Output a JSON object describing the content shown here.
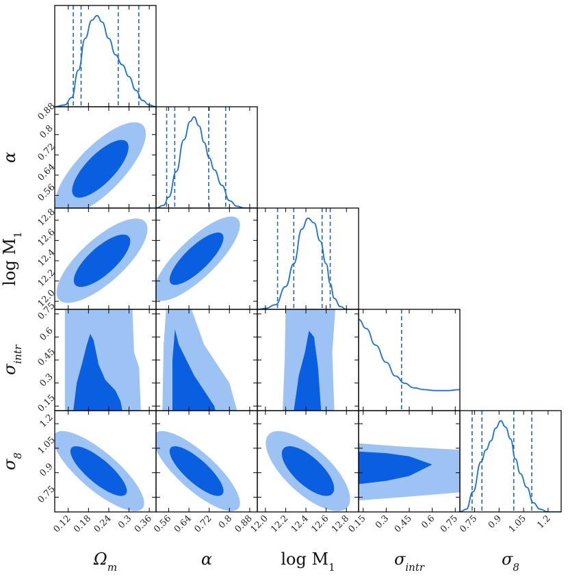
{
  "chart_data": {
    "type": "corner",
    "colors": {
      "line": "#1a6fd6",
      "fill_inner": "#0a5fe0",
      "fill_outer": "#9cc3f3",
      "dashed": "#2166b0"
    },
    "parameters": [
      {
        "key": "omega_m",
        "label": "Ωm",
        "ticks": [
          0.12,
          0.18,
          0.24,
          0.3,
          0.36
        ],
        "tick_labels": [
          "0.12",
          "0.18",
          "0.24",
          "0.3",
          "0.36"
        ],
        "range": [
          0.08,
          0.38
        ]
      },
      {
        "key": "alpha",
        "label": "α",
        "ticks": [
          0.56,
          0.64,
          0.72,
          0.8,
          0.88
        ],
        "tick_labels": [
          "0.56",
          "0.64",
          "0.72",
          "0.8",
          "0.88"
        ],
        "range": [
          0.51,
          0.91
        ]
      },
      {
        "key": "logM1",
        "label": "log M1",
        "ticks": [
          12.0,
          12.2,
          12.4,
          12.6,
          12.8
        ],
        "tick_labels": [
          "12.0",
          "12.2",
          "12.4",
          "12.6",
          "12.8"
        ],
        "range": [
          11.92,
          12.92
        ]
      },
      {
        "key": "sigma_intr",
        "label": "σintr",
        "ticks": [
          0.15,
          0.3,
          0.45,
          0.6,
          0.75
        ],
        "tick_labels": [
          "0.15",
          "0.3",
          "0.45",
          "0.6",
          "0.75"
        ],
        "range": [
          0.12,
          0.78
        ]
      },
      {
        "key": "sigma8",
        "label": "σ8",
        "ticks": [
          0.75,
          0.9,
          1.05,
          1.2
        ],
        "tick_labels": [
          "0.75",
          "0.9",
          "1.05",
          "1.2"
        ],
        "range": [
          0.66,
          1.28
        ]
      }
    ],
    "marginals": [
      {
        "param": "omega_m",
        "quantiles": [
          0.135,
          0.158,
          0.268,
          0.329
        ],
        "curve": [
          [
            0.08,
            0
          ],
          [
            0.11,
            0.02
          ],
          [
            0.13,
            0.1
          ],
          [
            0.15,
            0.4
          ],
          [
            0.17,
            0.75
          ],
          [
            0.19,
            0.95
          ],
          [
            0.205,
            1.0
          ],
          [
            0.22,
            0.93
          ],
          [
            0.24,
            0.75
          ],
          [
            0.26,
            0.57
          ],
          [
            0.28,
            0.46
          ],
          [
            0.3,
            0.33
          ],
          [
            0.32,
            0.18
          ],
          [
            0.34,
            0.07
          ],
          [
            0.36,
            0.02
          ],
          [
            0.38,
            0
          ]
        ]
      },
      {
        "param": "alpha",
        "quantiles": [
          0.552,
          0.584,
          0.718,
          0.785
        ],
        "curve": [
          [
            0.51,
            0
          ],
          [
            0.54,
            0.03
          ],
          [
            0.56,
            0.12
          ],
          [
            0.59,
            0.4
          ],
          [
            0.62,
            0.75
          ],
          [
            0.645,
            0.95
          ],
          [
            0.66,
            1.0
          ],
          [
            0.68,
            0.9
          ],
          [
            0.7,
            0.72
          ],
          [
            0.72,
            0.55
          ],
          [
            0.74,
            0.42
          ],
          [
            0.77,
            0.25
          ],
          [
            0.8,
            0.08
          ],
          [
            0.83,
            0.02
          ],
          [
            0.86,
            0.0
          ],
          [
            0.91,
            0
          ]
        ]
      },
      {
        "param": "logM1",
        "quantiles": [
          12.12,
          12.28,
          12.56,
          12.64
        ],
        "curve": [
          [
            11.92,
            0
          ],
          [
            12.0,
            0.01
          ],
          [
            12.1,
            0.05
          ],
          [
            12.2,
            0.25
          ],
          [
            12.28,
            0.5
          ],
          [
            12.36,
            0.88
          ],
          [
            12.42,
            1.0
          ],
          [
            12.48,
            0.95
          ],
          [
            12.54,
            0.75
          ],
          [
            12.6,
            0.5
          ],
          [
            12.64,
            0.28
          ],
          [
            12.68,
            0.12
          ],
          [
            12.74,
            0.03
          ],
          [
            12.8,
            0.0
          ],
          [
            12.92,
            0
          ]
        ]
      },
      {
        "param": "sigma_intr",
        "quantiles": [
          0.4
        ],
        "curve": [
          [
            0.12,
            1.0
          ],
          [
            0.17,
            0.9
          ],
          [
            0.23,
            0.72
          ],
          [
            0.3,
            0.53
          ],
          [
            0.36,
            0.38
          ],
          [
            0.42,
            0.3
          ],
          [
            0.48,
            0.25
          ],
          [
            0.55,
            0.23
          ],
          [
            0.62,
            0.22
          ],
          [
            0.7,
            0.22
          ],
          [
            0.78,
            0.23
          ]
        ]
      },
      {
        "param": "sigma8",
        "quantiles": [
          0.735,
          0.795,
          0.99,
          1.1
        ],
        "curve": [
          [
            0.66,
            0
          ],
          [
            0.7,
            0.03
          ],
          [
            0.74,
            0.22
          ],
          [
            0.79,
            0.55
          ],
          [
            0.82,
            0.68
          ],
          [
            0.85,
            0.78
          ],
          [
            0.88,
            0.92
          ],
          [
            0.91,
            1.0
          ],
          [
            0.94,
            0.93
          ],
          [
            0.97,
            0.8
          ],
          [
            1.0,
            0.58
          ],
          [
            1.03,
            0.42
          ],
          [
            1.07,
            0.27
          ],
          [
            1.11,
            0.1
          ],
          [
            1.15,
            0.03
          ],
          [
            1.2,
            0.0
          ],
          [
            1.28,
            0
          ]
        ]
      }
    ],
    "contours": [
      {
        "x": "omega_m",
        "y": "alpha",
        "kind": "ellipse",
        "center": [
          0.215,
          0.665
        ],
        "sd": [
          0.055,
          0.075
        ],
        "corr": 0.75
      },
      {
        "x": "omega_m",
        "y": "logM1",
        "kind": "ellipse",
        "center": [
          0.22,
          12.4
        ],
        "sd": [
          0.055,
          0.17
        ],
        "corr": 0.75
      },
      {
        "x": "alpha",
        "y": "logM1",
        "kind": "ellipse",
        "center": [
          0.67,
          12.42
        ],
        "sd": [
          0.07,
          0.17
        ],
        "corr": 0.8
      },
      {
        "x": "omega_m",
        "y": "sigma8",
        "kind": "ellipse",
        "center": [
          0.21,
          0.91
        ],
        "sd": [
          0.055,
          0.1
        ],
        "corr": -0.8
      },
      {
        "x": "alpha",
        "y": "sigma8",
        "kind": "ellipse",
        "center": [
          0.67,
          0.91
        ],
        "sd": [
          0.07,
          0.1
        ],
        "corr": -0.8
      },
      {
        "x": "logM1",
        "y": "sigma8",
        "kind": "ellipse",
        "center": [
          12.42,
          0.91
        ],
        "sd": [
          0.17,
          0.1
        ],
        "corr": -0.7
      },
      {
        "x": "omega_m",
        "y": "sigma_intr",
        "kind": "polygon",
        "outer": [
          [
            0.11,
            0.12
          ],
          [
            0.11,
            0.78
          ],
          [
            0.31,
            0.78
          ],
          [
            0.315,
            0.5
          ],
          [
            0.33,
            0.4
          ],
          [
            0.335,
            0.12
          ]
        ],
        "inner": [
          [
            0.135,
            0.12
          ],
          [
            0.145,
            0.3
          ],
          [
            0.16,
            0.42
          ],
          [
            0.175,
            0.55
          ],
          [
            0.185,
            0.62
          ],
          [
            0.195,
            0.58
          ],
          [
            0.21,
            0.42
          ],
          [
            0.23,
            0.32
          ],
          [
            0.26,
            0.25
          ],
          [
            0.275,
            0.18
          ],
          [
            0.28,
            0.12
          ]
        ]
      },
      {
        "x": "alpha",
        "y": "sigma_intr",
        "kind": "polygon",
        "outer": [
          [
            0.535,
            0.12
          ],
          [
            0.54,
            0.55
          ],
          [
            0.55,
            0.78
          ],
          [
            0.65,
            0.78
          ],
          [
            0.7,
            0.55
          ],
          [
            0.8,
            0.3
          ],
          [
            0.83,
            0.12
          ]
        ],
        "inner": [
          [
            0.575,
            0.12
          ],
          [
            0.575,
            0.45
          ],
          [
            0.585,
            0.65
          ],
          [
            0.6,
            0.55
          ],
          [
            0.63,
            0.45
          ],
          [
            0.66,
            0.35
          ],
          [
            0.7,
            0.25
          ],
          [
            0.74,
            0.15
          ],
          [
            0.745,
            0.12
          ]
        ]
      },
      {
        "x": "logM1",
        "y": "sigma_intr",
        "kind": "polygon",
        "outer": [
          [
            12.17,
            0.12
          ],
          [
            12.19,
            0.45
          ],
          [
            12.2,
            0.78
          ],
          [
            12.69,
            0.78
          ],
          [
            12.66,
            0.5
          ],
          [
            12.68,
            0.12
          ]
        ],
        "inner": [
          [
            12.28,
            0.12
          ],
          [
            12.33,
            0.35
          ],
          [
            12.39,
            0.5
          ],
          [
            12.43,
            0.64
          ],
          [
            12.48,
            0.6
          ],
          [
            12.52,
            0.4
          ],
          [
            12.55,
            0.12
          ]
        ]
      },
      {
        "x": "sigma_intr",
        "y": "sigma8",
        "kind": "polygon",
        "outer": [
          [
            0.12,
            0.73
          ],
          [
            0.4,
            0.75
          ],
          [
            0.78,
            0.78
          ],
          [
            0.78,
            1.04
          ],
          [
            0.4,
            1.06
          ],
          [
            0.12,
            1.08
          ]
        ],
        "inner": [
          [
            0.12,
            0.83
          ],
          [
            0.3,
            0.85
          ],
          [
            0.45,
            0.88
          ],
          [
            0.6,
            0.95
          ],
          [
            0.45,
            1.0
          ],
          [
            0.3,
            1.02
          ],
          [
            0.12,
            1.03
          ]
        ]
      }
    ]
  }
}
